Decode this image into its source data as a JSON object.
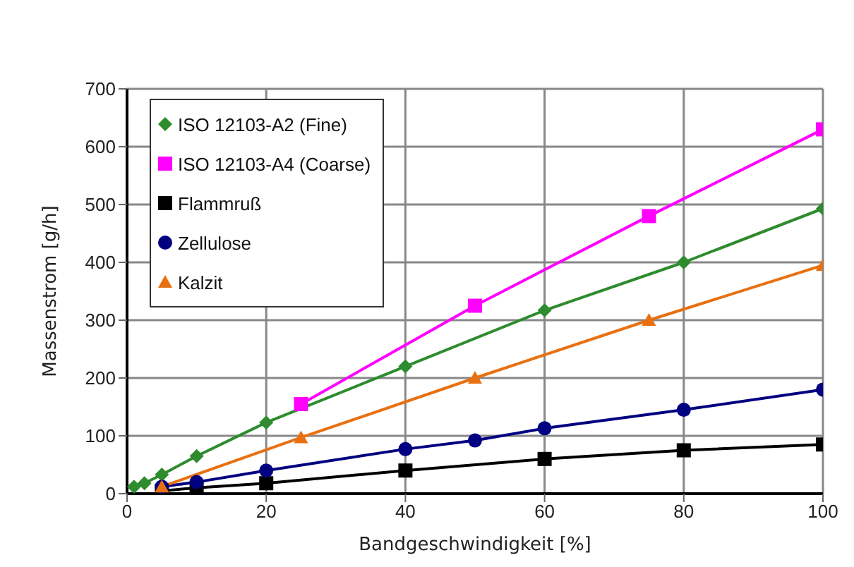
{
  "chart_data": {
    "type": "line",
    "xlabel": "Bandgeschwindigkeit [%]",
    "ylabel": "Massenstrom [g/h]",
    "xlim": [
      0,
      100
    ],
    "xticks": [
      0,
      20,
      40,
      60,
      80,
      100
    ],
    "ylim": [
      0,
      700
    ],
    "yticks": [
      0,
      100,
      200,
      300,
      400,
      500,
      600,
      700
    ],
    "grid": true,
    "legend": "top left",
    "series": [
      {
        "name": "ISO 12103-A2 (Fine)",
        "color": "#2e8b2e",
        "marker": "diamond",
        "x": [
          1,
          2.5,
          5,
          10,
          20,
          40,
          60,
          80,
          100
        ],
        "values": [
          12,
          18,
          33,
          65,
          123,
          220,
          317,
          400,
          493
        ]
      },
      {
        "name": "ISO 12103-A4 (Coarse)",
        "color": "#ff00ff",
        "marker": "square",
        "x": [
          25,
          50,
          75,
          100
        ],
        "values": [
          155,
          325,
          480,
          630
        ]
      },
      {
        "name": "Flammruß",
        "color": "#000000",
        "marker": "square",
        "x": [
          5,
          10,
          20,
          40,
          60,
          80,
          100
        ],
        "values": [
          5,
          10,
          18,
          40,
          60,
          75,
          85
        ]
      },
      {
        "name": "Zellulose",
        "color": "#000080",
        "marker": "circle",
        "x": [
          5,
          10,
          20,
          40,
          50,
          60,
          80,
          100
        ],
        "values": [
          12,
          20,
          40,
          77,
          92,
          113,
          145,
          180
        ]
      },
      {
        "name": "Kalzit",
        "color": "#e87010",
        "marker": "triangle",
        "x": [
          5,
          25,
          50,
          75,
          100
        ],
        "values": [
          12,
          97,
          200,
          300,
          395
        ]
      }
    ]
  }
}
